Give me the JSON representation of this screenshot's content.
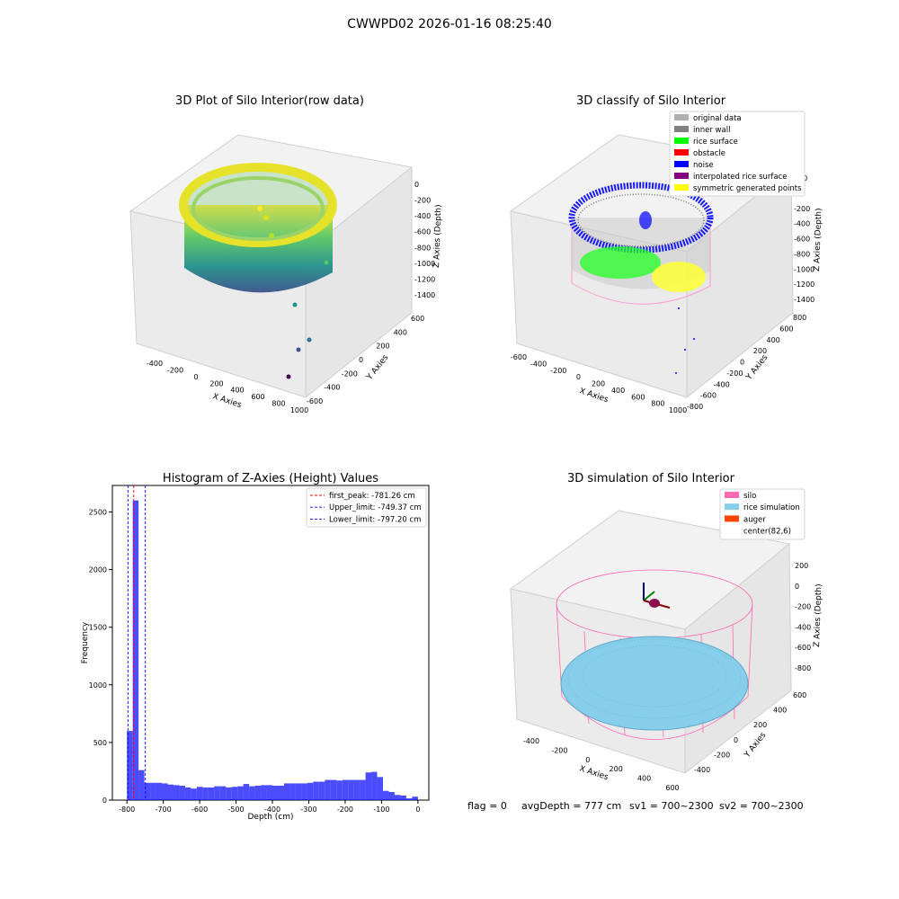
{
  "suptitle": "CWWPD02 2026-01-16 08:25:40",
  "panels": {
    "raw": {
      "title": "3D Plot of Silo Interior(row data)",
      "xlabel": "X Axies",
      "ylabel": "Y Axies",
      "zlabel": "Z Axies (Depth)",
      "xticks": [
        "-400",
        "-200",
        "0",
        "200",
        "400",
        "600",
        "800",
        "1000"
      ],
      "yticks": [
        "-600",
        "-400",
        "-200",
        "0",
        "200",
        "400",
        "600"
      ],
      "zticks": [
        "0",
        "-200",
        "-400",
        "-600",
        "-800",
        "-1000",
        "-1200",
        "-1400"
      ]
    },
    "classify": {
      "title": "3D classify of Silo Interior",
      "xlabel": "X Axies",
      "ylabel": "Y Axies",
      "zlabel": "Z Axies (Depth)",
      "xticks": [
        "-600",
        "-400",
        "-200",
        "0",
        "200",
        "400",
        "600",
        "800",
        "1000"
      ],
      "yticks": [
        "-800",
        "-600",
        "-400",
        "-200",
        "0",
        "200",
        "400",
        "600",
        "800"
      ],
      "zticks": [
        "200",
        "0",
        "-200",
        "-400",
        "-600",
        "-800",
        "-1000",
        "-1200",
        "-1400"
      ],
      "legend": [
        {
          "label": "original data",
          "color": "#b0b0b0"
        },
        {
          "label": "inner wall",
          "color": "#808080"
        },
        {
          "label": "rice surface",
          "color": "#00ff00"
        },
        {
          "label": "obstacle",
          "color": "#ff0000"
        },
        {
          "label": "noise",
          "color": "#0000ff"
        },
        {
          "label": "interpolated rice surface",
          "color": "#800080"
        },
        {
          "label": "symmetric generated points",
          "color": "#ffff00"
        }
      ]
    },
    "sim": {
      "title": "3D simulation of Silo Interior",
      "xlabel": "X Axies",
      "ylabel": "Y Axies",
      "zlabel": "Z Axies (Depth)",
      "xticks": [
        "-400",
        "-200",
        "0",
        "200",
        "400",
        "600"
      ],
      "yticks": [
        "-400",
        "-200",
        "0",
        "200",
        "400",
        "600"
      ],
      "zticks": [
        "200",
        "0",
        "-200",
        "-400",
        "-600",
        "-800"
      ],
      "legend": [
        {
          "label": "silo",
          "color": "#ff69b4"
        },
        {
          "label": "rice simulation",
          "color": "#87ceeb"
        },
        {
          "label": "auger",
          "color": "#ff4500"
        },
        {
          "label": "center(82,6)",
          "color": ""
        }
      ]
    },
    "hist": {
      "title": "Histogram of Z-Axies (Height) Values",
      "xlabel": "Depth (cm)",
      "ylabel": "Frequency",
      "legend": [
        {
          "label": "first_peak: -781.26 cm",
          "color": "#ff0000"
        },
        {
          "label": "Upper_limit: -749.37 cm",
          "color": "#0000ff"
        },
        {
          "label": "Lower_limit: -797.20 cm",
          "color": "#0000ff"
        }
      ]
    }
  },
  "footer": {
    "flag": "flag = 0",
    "avg": "avgDepth = 777 cm",
    "sv1": "sv1 = 700~2300",
    "sv2": "sv2 = 700~2300"
  },
  "chart_data": [
    {
      "type": "bar",
      "title": "Histogram of Z-Axies (Height) Values",
      "xlabel": "Depth (cm)",
      "ylabel": "Frequency",
      "xlim": [
        -840,
        30
      ],
      "ylim": [
        0,
        2730
      ],
      "xticks": [
        -800,
        -700,
        -600,
        -500,
        -400,
        -300,
        -200,
        -100,
        0
      ],
      "yticks": [
        0,
        500,
        1000,
        1500,
        2000,
        2500
      ],
      "bin_edges": [
        -800,
        -784,
        -768,
        -752,
        -736,
        -720,
        -704,
        -688,
        -672,
        -656,
        -640,
        -624,
        -608,
        -592,
        -576,
        -560,
        -544,
        -528,
        -512,
        -496,
        -480,
        -464,
        -448,
        -432,
        -416,
        -400,
        -384,
        -368,
        -352,
        -336,
        -320,
        -304,
        -288,
        -272,
        -256,
        -240,
        -224,
        -208,
        -192,
        -176,
        -160,
        -144,
        -128,
        -112,
        -96,
        -80,
        -64,
        -48,
        -32,
        -16,
        0
      ],
      "values": [
        600,
        2600,
        260,
        150,
        150,
        150,
        145,
        135,
        130,
        125,
        110,
        100,
        115,
        110,
        110,
        120,
        120,
        110,
        115,
        120,
        140,
        120,
        125,
        130,
        130,
        125,
        125,
        145,
        145,
        145,
        145,
        150,
        160,
        160,
        175,
        175,
        170,
        175,
        175,
        175,
        175,
        240,
        245,
        200,
        80,
        70,
        45,
        40,
        15,
        30
      ],
      "series": [
        {
          "name": "first_peak: -781.26 cm",
          "x": -781.26
        },
        {
          "name": "Upper_limit: -749.37 cm",
          "x": -749.37
        },
        {
          "name": "Lower_limit: -797.20 cm",
          "x": -797.2
        }
      ],
      "bar_color": "#0000ff",
      "legend_position": "upper right"
    }
  ]
}
